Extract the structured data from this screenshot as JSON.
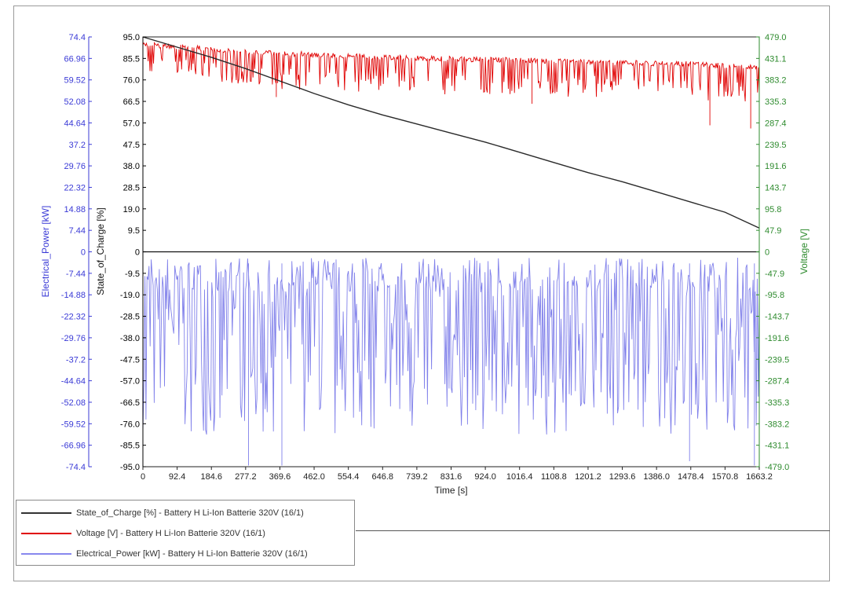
{
  "chart_data": {
    "type": "line",
    "xlabel": "Time [s]",
    "xlim": [
      0,
      1663.2
    ],
    "x_ticks": [
      "0",
      "92.4",
      "184.6",
      "277.2",
      "369.6",
      "462.0",
      "554.4",
      "646.8",
      "739.2",
      "831.6",
      "924.0",
      "1016.4",
      "1108.8",
      "1201.2",
      "1293.6",
      "1386.0",
      "1478.4",
      "1570.8",
      "1663.2"
    ],
    "axes": {
      "power": {
        "label": "Electrical_Power [kW]",
        "range": [
          -74.4,
          74.4
        ],
        "ticks": [
          "74.4",
          "66.96",
          "59.52",
          "52.08",
          "44.64",
          "37.2",
          "29.76",
          "22.32",
          "14.88",
          "7.44",
          "0",
          "-7.44",
          "-14.88",
          "-22.32",
          "-29.76",
          "-37.2",
          "-44.64",
          "-52.08",
          "-59.52",
          "-66.96",
          "-74.4"
        ],
        "color": "#3a3ad6"
      },
      "soc": {
        "label": "State_of_Charge [%]",
        "range": [
          -95.0,
          95.0
        ],
        "ticks": [
          "95.0",
          "85.5",
          "76.0",
          "66.5",
          "57.0",
          "47.5",
          "38.0",
          "28.5",
          "19.0",
          "9.5",
          "0",
          "-9.5",
          "-19.0",
          "-28.5",
          "-38.0",
          "-47.5",
          "-57.0",
          "-66.5",
          "-76.0",
          "-85.5",
          "-95.0"
        ],
        "color": "#000000"
      },
      "voltage": {
        "label": "Voltage [V]",
        "range": [
          -479.0,
          479.0
        ],
        "ticks": [
          "479.0",
          "431.1",
          "383.2",
          "335.3",
          "287.4",
          "239.5",
          "191.6",
          "143.7",
          "95.8",
          "47.9",
          "0",
          "-47.9",
          "-95.8",
          "-143.7",
          "-191.6",
          "-239.5",
          "-287.4",
          "-335.3",
          "-383.2",
          "-431.1",
          "-479.0"
        ],
        "color": "#2e8b2e"
      }
    },
    "series": [
      {
        "name": "State_of_Charge [%] - Battery H Li-Ion Batterie 320V (16/1)",
        "axis": "soc",
        "color": "#000000",
        "x": [
          0,
          92.4,
          184.6,
          277.2,
          369.6,
          462.0,
          554.4,
          646.8,
          739.2,
          831.6,
          924.0,
          1016.4,
          1108.8,
          1201.2,
          1293.6,
          1386.0,
          1478.4,
          1570.8,
          1663.2
        ],
        "values": [
          95.0,
          90.5,
          86.0,
          81.0,
          75.5,
          70.0,
          65.0,
          60.5,
          56.5,
          52.5,
          48.5,
          44.0,
          39.5,
          35.0,
          31.0,
          26.5,
          22.0,
          17.5,
          10.5
        ]
      },
      {
        "name": "Voltage [V] - Battery H Li-Ion Batterie 320V (16/1)",
        "axis": "voltage",
        "color": "#e00000",
        "baseline": [
          [
            0,
            462
          ],
          [
            300,
            445
          ],
          [
            700,
            432
          ],
          [
            1100,
            426
          ],
          [
            1500,
            418
          ],
          [
            1663.2,
            410
          ]
        ],
        "dip_min": [
          [
            0,
            400
          ],
          [
            400,
            360
          ],
          [
            800,
            350
          ],
          [
            1200,
            345
          ],
          [
            1663.2,
            330
          ]
        ],
        "deep_dips": [
          [
            360,
            345
          ],
          [
            1050,
            330
          ],
          [
            1530,
            282
          ],
          [
            1640,
            275
          ]
        ]
      },
      {
        "name": "Electrical_Power [kW] - Battery H Li-Ion Batterie 320V (16/1)",
        "axis": "power",
        "color": "#6a6ae6",
        "base_range": [
          -2,
          -14
        ],
        "spike_range": [
          -40,
          -64
        ],
        "deep_spikes": [
          [
            285,
            -74.0
          ],
          [
            375,
            -74.0
          ],
          [
            1475,
            -72.5
          ],
          [
            1650,
            -74.0
          ]
        ]
      }
    ],
    "legend_position": "bottom-left"
  }
}
